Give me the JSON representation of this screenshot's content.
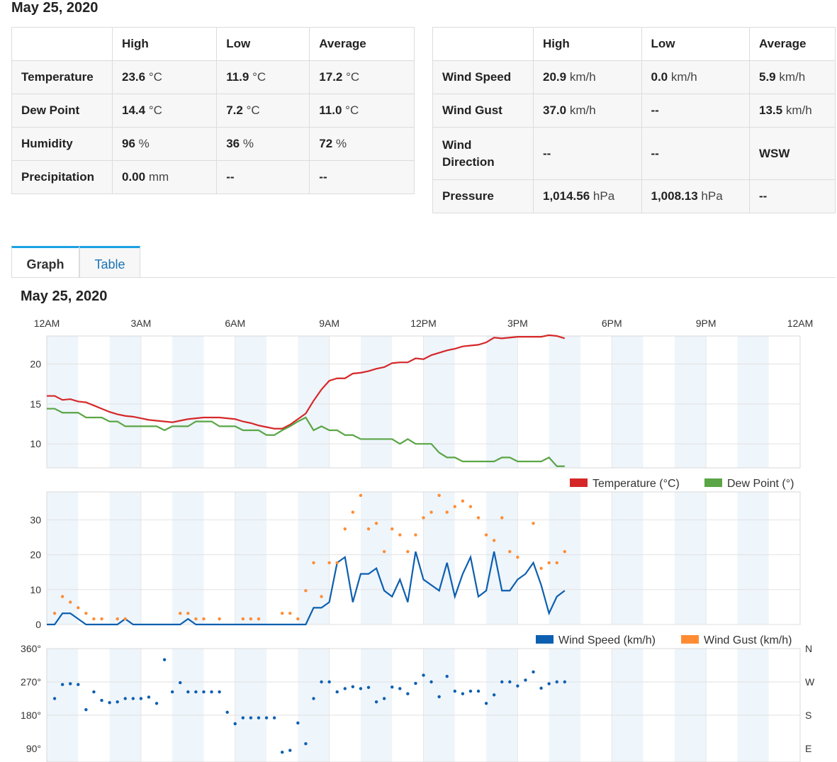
{
  "header": {
    "date": "May 25, 2020"
  },
  "summary_left": {
    "columns": [
      "",
      "High",
      "Low",
      "Average"
    ],
    "rows": [
      {
        "label": "Temperature",
        "high": "23.6",
        "high_unit": "°C",
        "low": "11.9",
        "low_unit": "°C",
        "avg": "17.2",
        "avg_unit": "°C"
      },
      {
        "label": "Dew Point",
        "high": "14.4",
        "high_unit": "°C",
        "low": "7.2",
        "low_unit": "°C",
        "avg": "11.0",
        "avg_unit": "°C"
      },
      {
        "label": "Humidity",
        "high": "96",
        "high_unit": "%",
        "low": "36",
        "low_unit": "%",
        "avg": "72",
        "avg_unit": "%"
      },
      {
        "label": "Precipitation",
        "high": "0.00",
        "high_unit": "mm",
        "low": "--",
        "low_unit": "",
        "avg": "--",
        "avg_unit": ""
      }
    ]
  },
  "summary_right": {
    "columns": [
      "",
      "High",
      "Low",
      "Average"
    ],
    "rows": [
      {
        "label": "Wind Speed",
        "high": "20.9",
        "high_unit": "km/h",
        "low": "0.0",
        "low_unit": "km/h",
        "avg": "5.9",
        "avg_unit": "km/h"
      },
      {
        "label": "Wind Gust",
        "high": "37.0",
        "high_unit": "km/h",
        "low": "--",
        "low_unit": "",
        "avg": "13.5",
        "avg_unit": "km/h"
      },
      {
        "label": "Wind Direction",
        "high": "--",
        "high_unit": "",
        "low": "--",
        "low_unit": "",
        "avg": "WSW",
        "avg_unit": ""
      },
      {
        "label": "Pressure",
        "high": "1,014.56",
        "high_unit": "hPa",
        "low": "1,008.13",
        "low_unit": "hPa",
        "avg": "--",
        "avg_unit": ""
      }
    ]
  },
  "tabs": [
    {
      "label": "Graph",
      "active": true
    },
    {
      "label": "Table",
      "active": false
    }
  ],
  "graph_title": "May 25, 2020",
  "colors": {
    "temperature": "#d62728",
    "dew_point": "#5aa545",
    "wind_speed": "#0d5fb0",
    "wind_gust": "#ff8c33",
    "direction": "#0d5fb0",
    "band": "#eef5fb",
    "tab_accent": "#1ba1e2"
  },
  "chart_data": [
    {
      "type": "line",
      "time_ticks": [
        "12AM",
        "3AM",
        "6AM",
        "9AM",
        "12PM",
        "3PM",
        "6PM",
        "9PM",
        "12AM"
      ],
      "x_unit_hours": [
        0,
        24
      ],
      "ylim": [
        7,
        23.5
      ],
      "yticks": [
        10,
        15,
        20
      ],
      "series": [
        {
          "name": "Temperature (°C)",
          "x": [
            0,
            0.25,
            0.5,
            0.75,
            1,
            1.25,
            1.5,
            1.75,
            2,
            2.25,
            2.5,
            2.75,
            3,
            3.25,
            3.5,
            3.75,
            4,
            4.25,
            4.5,
            4.75,
            5,
            5.25,
            5.5,
            5.75,
            6,
            6.25,
            6.5,
            6.75,
            7,
            7.25,
            7.5,
            7.75,
            8,
            8.25,
            8.5,
            8.75,
            9,
            9.25,
            9.5,
            9.75,
            10,
            10.25,
            10.5,
            10.75,
            11,
            11.25,
            11.5,
            11.75,
            12,
            12.25,
            12.5,
            12.75,
            13,
            13.25,
            13.5,
            13.75,
            14,
            14.25,
            14.5,
            14.75,
            15,
            15.25,
            15.5,
            15.75,
            16,
            16.25,
            16.5
          ],
          "values": [
            16.0,
            16.0,
            15.5,
            15.6,
            15.3,
            15.2,
            14.8,
            14.4,
            14.0,
            13.7,
            13.5,
            13.4,
            13.2,
            13.0,
            12.9,
            12.8,
            12.7,
            12.9,
            13.1,
            13.2,
            13.3,
            13.3,
            13.3,
            13.2,
            13.1,
            12.8,
            12.6,
            12.3,
            12.1,
            11.9,
            11.9,
            12.4,
            13.1,
            13.8,
            15.4,
            16.8,
            17.9,
            18.2,
            18.2,
            18.8,
            18.9,
            19.1,
            19.4,
            19.6,
            20.1,
            20.2,
            20.2,
            20.7,
            20.6,
            21.1,
            21.4,
            21.7,
            21.9,
            22.2,
            22.3,
            22.4,
            22.7,
            23.3,
            23.2,
            23.3,
            23.4,
            23.4,
            23.4,
            23.4,
            23.6,
            23.5,
            23.2
          ]
        },
        {
          "name": "Dew Point (°)",
          "x": [
            0,
            0.25,
            0.5,
            0.75,
            1,
            1.25,
            1.5,
            1.75,
            2,
            2.25,
            2.5,
            2.75,
            3,
            3.25,
            3.5,
            3.75,
            4,
            4.25,
            4.5,
            4.75,
            5,
            5.25,
            5.5,
            5.75,
            6,
            6.25,
            6.5,
            6.75,
            7,
            7.25,
            7.5,
            7.75,
            8,
            8.25,
            8.5,
            8.75,
            9,
            9.25,
            9.5,
            9.75,
            10,
            10.25,
            10.5,
            10.75,
            11,
            11.25,
            11.5,
            11.75,
            12,
            12.25,
            12.5,
            12.75,
            13,
            13.25,
            13.5,
            13.75,
            14,
            14.25,
            14.5,
            14.75,
            15,
            15.25,
            15.5,
            15.75,
            16,
            16.25,
            16.5
          ],
          "values": [
            14.4,
            14.4,
            13.9,
            13.9,
            13.9,
            13.3,
            13.3,
            13.3,
            12.8,
            12.8,
            12.2,
            12.2,
            12.2,
            12.2,
            12.2,
            11.7,
            12.2,
            12.2,
            12.2,
            12.8,
            12.8,
            12.8,
            12.2,
            12.2,
            12.2,
            11.7,
            11.7,
            11.7,
            11.1,
            11.1,
            11.7,
            12.2,
            12.8,
            13.3,
            11.7,
            12.2,
            11.7,
            11.7,
            11.1,
            11.1,
            10.6,
            10.6,
            10.6,
            10.6,
            10.6,
            10.0,
            10.6,
            10.0,
            10.0,
            10.0,
            8.9,
            8.3,
            8.3,
            7.8,
            7.8,
            7.8,
            7.8,
            7.8,
            8.3,
            8.3,
            7.8,
            7.8,
            7.8,
            7.8,
            8.3,
            7.2,
            7.2
          ]
        }
      ]
    },
    {
      "type": "line",
      "ylim": [
        0,
        38
      ],
      "yticks": [
        0,
        10,
        20,
        30
      ],
      "series": [
        {
          "name": "Wind Speed (km/h)",
          "x": [
            0,
            0.25,
            0.5,
            0.75,
            1,
            1.25,
            1.5,
            1.75,
            2,
            2.25,
            2.5,
            2.75,
            3,
            3.25,
            3.5,
            3.75,
            4,
            4.25,
            4.5,
            4.75,
            5,
            5.25,
            5.5,
            5.75,
            6,
            6.25,
            6.5,
            6.75,
            7,
            7.25,
            7.5,
            7.75,
            8,
            8.25,
            8.5,
            8.75,
            9,
            9.25,
            9.5,
            9.75,
            10,
            10.25,
            10.5,
            10.75,
            11,
            11.25,
            11.5,
            11.75,
            12,
            12.25,
            12.5,
            12.75,
            13,
            13.25,
            13.5,
            13.75,
            14,
            14.25,
            14.5,
            14.75,
            15,
            15.25,
            15.5,
            15.75,
            16,
            16.25,
            16.5
          ],
          "values": [
            0,
            0,
            3.2,
            3.2,
            1.6,
            0,
            0,
            0,
            0,
            0,
            1.6,
            0,
            0,
            0,
            0,
            0,
            0,
            0,
            1.6,
            0,
            0,
            0,
            0,
            0,
            0,
            0,
            0,
            0,
            0,
            0,
            0,
            0,
            0,
            0,
            4.8,
            4.8,
            6.4,
            17.7,
            19.3,
            6.4,
            14.5,
            14.5,
            16.1,
            9.7,
            8.0,
            12.9,
            6.4,
            20.9,
            12.9,
            11.3,
            9.7,
            17.7,
            8.0,
            14.5,
            19.3,
            8.0,
            9.7,
            20.9,
            9.7,
            9.7,
            12.9,
            14.5,
            17.7,
            11.3,
            3.2,
            8.0,
            9.7
          ]
        },
        {
          "name": "Wind Gust (km/h)",
          "x": [
            0.25,
            0.5,
            0.75,
            1,
            1.25,
            1.5,
            1.75,
            2,
            2.25,
            2.5,
            2.75,
            3,
            3.25,
            3.5,
            3.75,
            4,
            4.25,
            4.5,
            4.75,
            5,
            5.25,
            5.5,
            5.75,
            6,
            6.25,
            6.5,
            6.75,
            7,
            7.25,
            7.5,
            7.75,
            8,
            8.25,
            8.5,
            8.75,
            9,
            9.25,
            9.5,
            9.75,
            10,
            10.25,
            10.5,
            10.75,
            11,
            11.25,
            11.5,
            11.75,
            12,
            12.25,
            12.5,
            12.75,
            13,
            13.25,
            13.5,
            13.75,
            14,
            14.25,
            14.5,
            14.75,
            15,
            15.25,
            15.5,
            15.75,
            16,
            16.25,
            16.5
          ],
          "values": [
            3.2,
            8.0,
            6.4,
            4.8,
            3.2,
            1.6,
            1.6,
            null,
            1.6,
            1.6,
            null,
            null,
            null,
            null,
            null,
            null,
            3.2,
            3.2,
            1.6,
            1.6,
            null,
            1.6,
            null,
            null,
            1.6,
            1.6,
            1.6,
            null,
            null,
            3.2,
            3.2,
            1.6,
            9.7,
            17.7,
            8.0,
            17.7,
            17.7,
            27.4,
            32.2,
            37.0,
            27.4,
            29.0,
            20.9,
            27.4,
            25.7,
            20.9,
            25.7,
            30.6,
            32.2,
            37.0,
            32.2,
            33.8,
            35.4,
            33.8,
            30.6,
            25.7,
            24.1,
            30.6,
            20.9,
            19.3,
            null,
            29.0,
            16.1,
            17.7,
            17.7,
            20.9
          ]
        }
      ]
    },
    {
      "type": "scatter",
      "ylim": [
        80,
        360
      ],
      "yticks_left": [
        "90°",
        "180°",
        "270°",
        "360°"
      ],
      "yticks_left_values": [
        90,
        180,
        270,
        360
      ],
      "yticks_right": [
        "E",
        "S",
        "W",
        "N"
      ],
      "series": [
        {
          "name": "Wind Direction",
          "x": [
            0.25,
            0.5,
            0.75,
            1,
            1.25,
            1.5,
            1.75,
            2,
            2.25,
            2.5,
            2.75,
            3,
            3.25,
            3.5,
            3.75,
            4,
            4.25,
            4.5,
            4.75,
            5,
            5.25,
            5.5,
            5.75,
            6,
            6.25,
            6.5,
            6.75,
            7,
            7.25,
            7.5,
            7.75,
            8,
            8.25,
            8.5,
            8.75,
            9,
            9.25,
            9.5,
            9.75,
            10,
            10.25,
            10.5,
            10.75,
            11,
            11.25,
            11.5,
            11.75,
            12,
            12.25,
            12.5,
            12.75,
            13,
            13.25,
            13.5,
            13.75,
            14,
            14.25,
            14.5,
            14.75,
            15,
            15.25,
            15.5,
            15.75,
            16,
            16.25,
            16.5
          ],
          "values": [
            225,
            263,
            265,
            263,
            195,
            243,
            220,
            214,
            216,
            225,
            225,
            225,
            229,
            212,
            330,
            243,
            268,
            243,
            243,
            243,
            243,
            243,
            188,
            157,
            173,
            173,
            173,
            173,
            173,
            80,
            85,
            159,
            103,
            225,
            270,
            270,
            243,
            252,
            257,
            252,
            255,
            216,
            225,
            256,
            252,
            238,
            266,
            288,
            270,
            230,
            285,
            245,
            238,
            245,
            245,
            212,
            235,
            270,
            270,
            259,
            275,
            297,
            253,
            265,
            270,
            270
          ]
        }
      ]
    }
  ]
}
